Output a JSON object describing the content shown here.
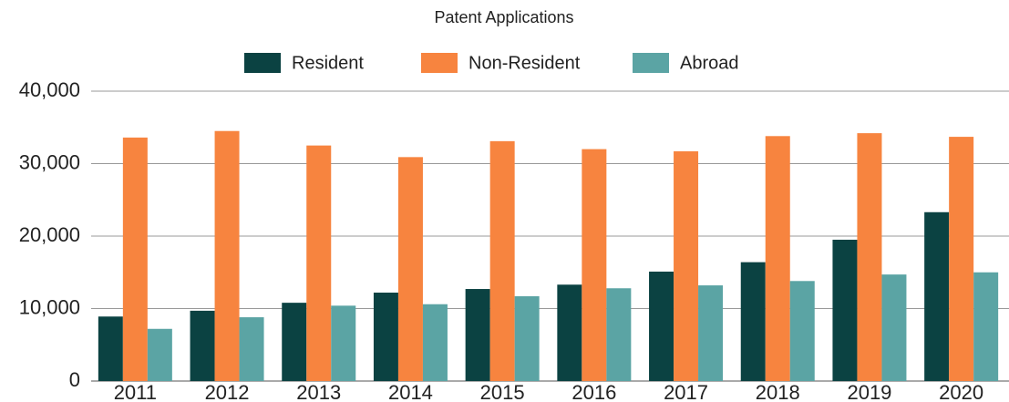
{
  "chart_data": {
    "type": "bar",
    "title": "Patent Applications",
    "categories": [
      "2011",
      "2012",
      "2013",
      "2014",
      "2015",
      "2016",
      "2017",
      "2018",
      "2019",
      "2020"
    ],
    "series": [
      {
        "name": "Resident",
        "color": "#0b4242",
        "values": [
          8900,
          9700,
          10800,
          12200,
          12700,
          13300,
          15100,
          16400,
          19500,
          23300
        ]
      },
      {
        "name": "Non-Resident",
        "color": "#f7843f",
        "values": [
          33600,
          34500,
          32500,
          30900,
          33100,
          32000,
          31700,
          33800,
          34200,
          33700
        ]
      },
      {
        "name": "Abroad",
        "color": "#5ba4a4",
        "values": [
          7200,
          8800,
          10400,
          10600,
          11700,
          12800,
          13200,
          13800,
          14700,
          15000
        ]
      }
    ],
    "ylim": [
      0,
      40000
    ],
    "yticks": [
      0,
      {
        "value": 10000,
        "label": "10,000"
      },
      {
        "value": 20000,
        "label": "20,000"
      },
      {
        "value": 30000,
        "label": "30,000"
      },
      {
        "value": 40000,
        "label": "40,000"
      }
    ],
    "grid": true,
    "legend": "top"
  }
}
